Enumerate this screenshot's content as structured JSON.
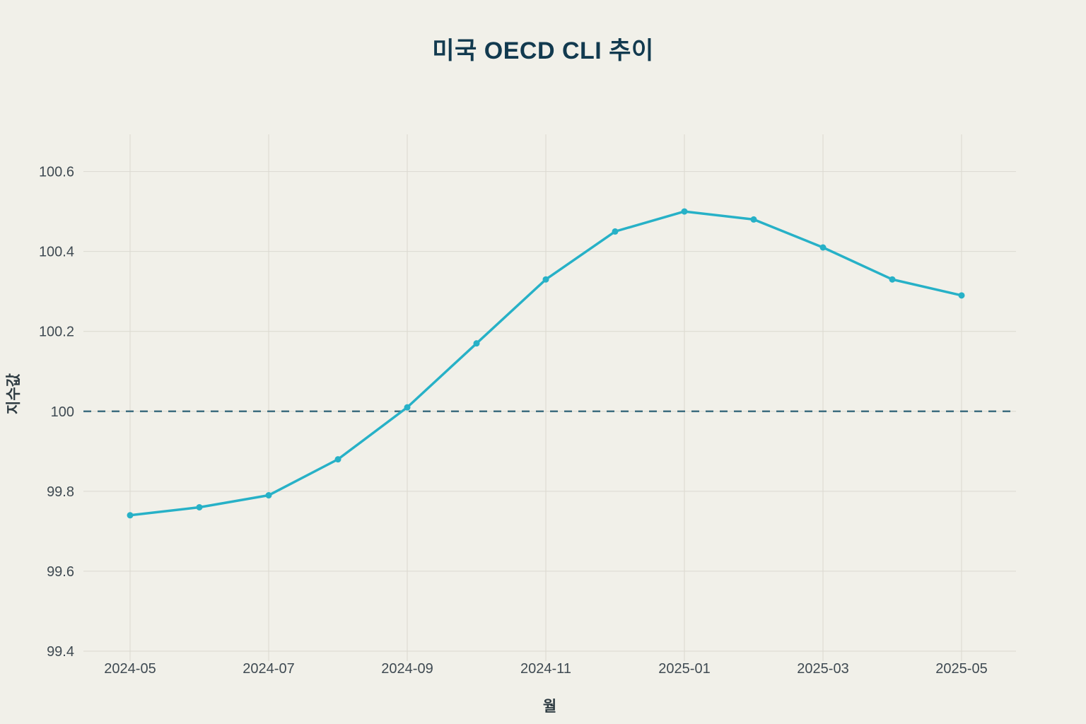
{
  "chart_data": {
    "type": "line",
    "title": "미국 OECD CLI 추이",
    "xlabel": "월",
    "ylabel": "지수값",
    "x": [
      "2024-05",
      "2024-06",
      "2024-07",
      "2024-08",
      "2024-09",
      "2024-10",
      "2024-11",
      "2024-12",
      "2025-01",
      "2025-02",
      "2025-03",
      "2025-04",
      "2025-05"
    ],
    "values": [
      99.74,
      99.76,
      99.79,
      99.88,
      100.01,
      100.17,
      100.33,
      100.45,
      100.5,
      100.48,
      100.41,
      100.33,
      100.29
    ],
    "ylim": [
      99.4,
      100.693
    ],
    "yticks": [
      99.4,
      99.6,
      99.8,
      100,
      100.2,
      100.4,
      100.6
    ],
    "xticks": [
      "2024-05",
      "2024-07",
      "2024-09",
      "2024-11",
      "2025-01",
      "2025-03",
      "2025-05"
    ],
    "reference_line": {
      "y": 100,
      "style": "dashed"
    },
    "grid": true,
    "legend_position": "none",
    "colors": {
      "line": "#27b1c7",
      "marker": "#27b1c7",
      "reference": "#3f6e80",
      "background": "#f1f0e9",
      "grid": "#dbd9d0",
      "tick_text": "#3f4a52",
      "title_text": "#123a4f"
    }
  }
}
